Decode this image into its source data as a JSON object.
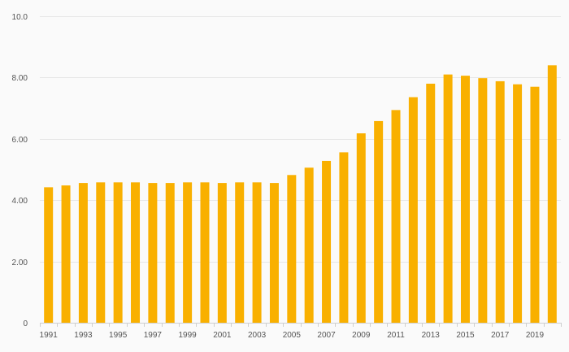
{
  "chart_data": {
    "type": "bar",
    "title": "",
    "xlabel": "",
    "ylabel": "",
    "bar_color": "#f9b000",
    "ylim": [
      0,
      10
    ],
    "y_ticks": [
      {
        "value": 0,
        "label": "0"
      },
      {
        "value": 2,
        "label": "2.00"
      },
      {
        "value": 4,
        "label": "4.00"
      },
      {
        "value": 6,
        "label": "6.00"
      },
      {
        "value": 8,
        "label": "8.00"
      },
      {
        "value": 10,
        "label": "10.0"
      }
    ],
    "x_tick_labels": [
      "1991",
      "1993",
      "1995",
      "1997",
      "1999",
      "2001",
      "2003",
      "2005",
      "2007",
      "2009",
      "2011",
      "2013",
      "2015",
      "2017",
      "2019"
    ],
    "categories": [
      "1991",
      "1992",
      "1993",
      "1994",
      "1995",
      "1996",
      "1997",
      "1998",
      "1999",
      "2000",
      "2001",
      "2002",
      "2003",
      "2004",
      "2005",
      "2006",
      "2007",
      "2008",
      "2009",
      "2010",
      "2011",
      "2012",
      "2013",
      "2014",
      "2015",
      "2016",
      "2017",
      "2018",
      "2019",
      "2020"
    ],
    "values": [
      4.42,
      4.48,
      4.56,
      4.58,
      4.58,
      4.58,
      4.56,
      4.56,
      4.58,
      4.58,
      4.56,
      4.58,
      4.58,
      4.56,
      4.82,
      5.06,
      5.28,
      5.56,
      6.18,
      6.58,
      6.94,
      7.36,
      7.8,
      8.1,
      8.06,
      7.98,
      7.88,
      7.78,
      7.7,
      8.4
    ],
    "grid": true,
    "legend": "none"
  }
}
